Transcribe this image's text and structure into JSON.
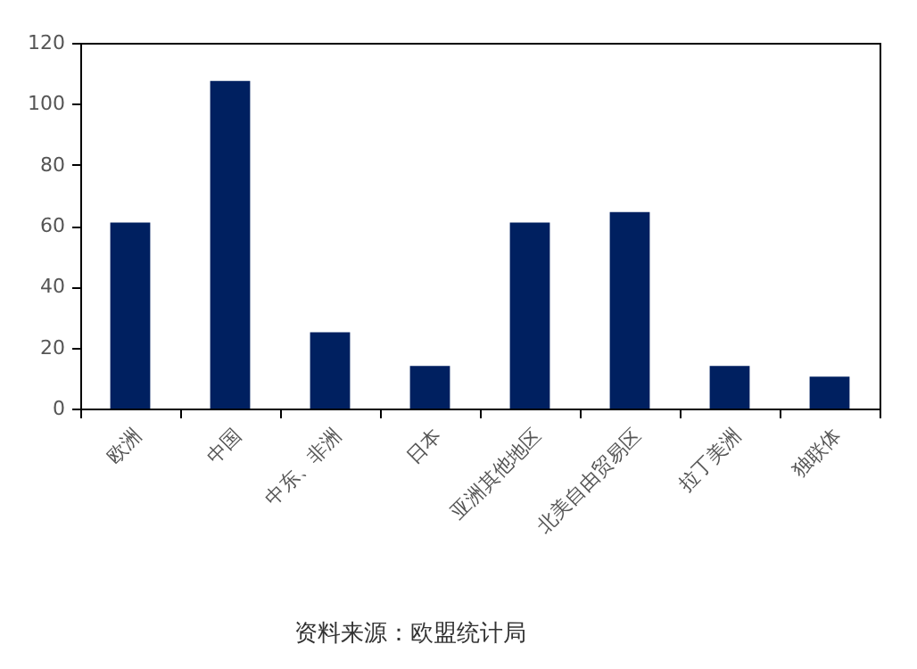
{
  "chart_data": {
    "type": "bar",
    "categories": [
      "欧洲",
      "中国",
      "中东、非洲",
      "日本",
      "亚洲其他地区",
      "北美自由贸易区",
      "拉丁美洲",
      "独联体"
    ],
    "values": [
      61,
      107.5,
      25,
      14,
      61,
      64.5,
      14,
      10.5
    ],
    "color": "#002060",
    "ylim": [
      0,
      120
    ],
    "yticks": [
      0,
      20,
      40,
      60,
      80,
      100,
      120
    ],
    "grid": false,
    "annotations": [
      "资料来源：欧盟统计局"
    ]
  }
}
